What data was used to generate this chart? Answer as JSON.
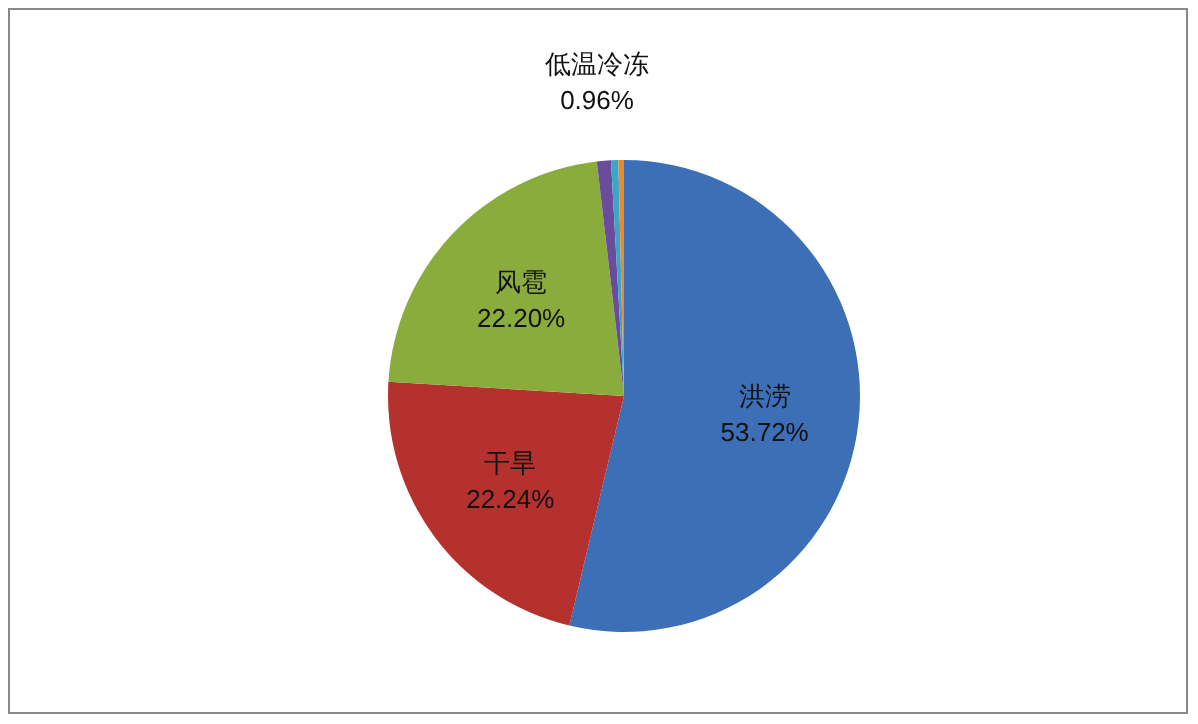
{
  "chart_data": {
    "type": "pie",
    "categories": [
      "洪涝",
      "干旱",
      "风雹",
      "低温冷冻",
      null,
      null
    ],
    "values": [
      53.72,
      22.24,
      22.2,
      0.96,
      0.5,
      0.38
    ],
    "value_labels": [
      "53.72%",
      "22.24%",
      "22.20%",
      "0.96%",
      null,
      null
    ],
    "colors": [
      "#3c6fb6",
      "#b5312e",
      "#8aac3c",
      "#6b4b9c",
      "#3ba7c6",
      "#ea8a2c"
    ],
    "legend": false
  }
}
